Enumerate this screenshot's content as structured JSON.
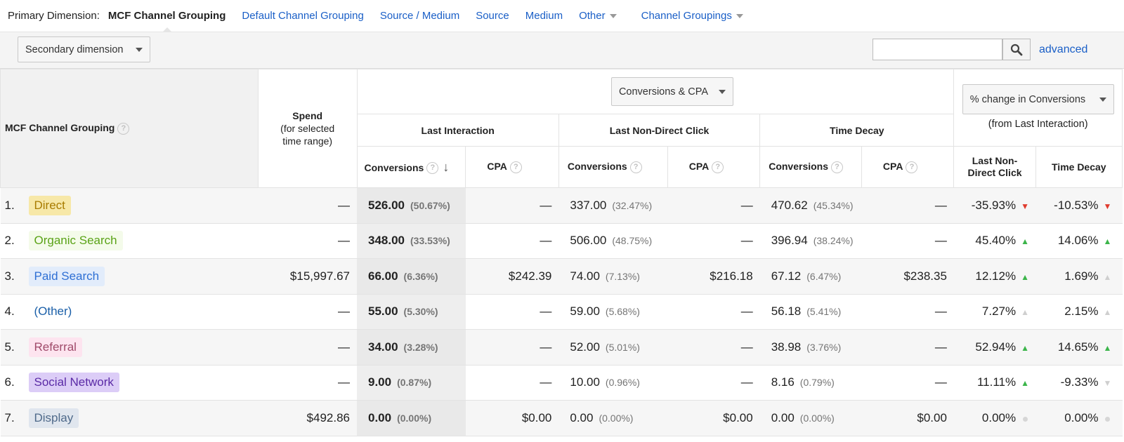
{
  "primary_dimension": {
    "label": "Primary Dimension:",
    "current": "MCF Channel Grouping",
    "links": [
      "Default Channel Grouping",
      "Source / Medium",
      "Source",
      "Medium"
    ],
    "other": "Other",
    "channel_groupings": "Channel Groupings"
  },
  "toolbar": {
    "secondary_dimension": "Secondary dimension",
    "search_value": "",
    "advanced": "advanced"
  },
  "table": {
    "dimension_header": "MCF Channel Grouping",
    "spend_header": "Spend",
    "spend_subheader": "(for selected time range)",
    "metric_selector": "Conversions & CPA",
    "change_selector": "% change in Conversions",
    "change_subheader": "(from Last Interaction)",
    "models": [
      "Last Interaction",
      "Last Non-Direct Click",
      "Time Decay"
    ],
    "conversions_label": "Conversions",
    "cpa_label": "CPA",
    "change_cols": [
      "Last Non-Direct Click",
      "Time Decay"
    ],
    "help_glyph": "?",
    "sort_glyph": "↓",
    "rows": [
      {
        "idx": "1.",
        "name": "Direct",
        "chip_bg": "#f7e8a8",
        "chip_fg": "#a87b00",
        "spend": "—",
        "li_conv": "526.00",
        "li_pct": "(50.67%)",
        "li_cpa": "—",
        "ln_conv": "337.00",
        "ln_pct": "(32.47%)",
        "ln_cpa": "—",
        "td_conv": "470.62",
        "td_pct": "(45.34%)",
        "td_cpa": "—",
        "ch_ln": "-35.93%",
        "ch_ln_dir": "down",
        "ch_td": "-10.53%",
        "ch_td_dir": "down"
      },
      {
        "idx": "2.",
        "name": "Organic Search",
        "chip_bg": "#f4fbea",
        "chip_fg": "#5aa317",
        "spend": "—",
        "li_conv": "348.00",
        "li_pct": "(33.53%)",
        "li_cpa": "—",
        "ln_conv": "506.00",
        "ln_pct": "(48.75%)",
        "ln_cpa": "—",
        "td_conv": "396.94",
        "td_pct": "(38.24%)",
        "td_cpa": "—",
        "ch_ln": "45.40%",
        "ch_ln_dir": "up",
        "ch_td": "14.06%",
        "ch_td_dir": "up"
      },
      {
        "idx": "3.",
        "name": "Paid Search",
        "chip_bg": "#e2ecfb",
        "chip_fg": "#2e6fd4",
        "spend": "$15,997.67",
        "li_conv": "66.00",
        "li_pct": "(6.36%)",
        "li_cpa": "$242.39",
        "ln_conv": "74.00",
        "ln_pct": "(7.13%)",
        "ln_cpa": "$216.18",
        "td_conv": "67.12",
        "td_pct": "(6.47%)",
        "td_cpa": "$238.35",
        "ch_ln": "12.12%",
        "ch_ln_dir": "up",
        "ch_td": "1.69%",
        "ch_td_dir": "up-gray"
      },
      {
        "idx": "4.",
        "name": "(Other)",
        "chip_bg": "transparent",
        "chip_fg": "#1a5fa8",
        "spend": "—",
        "li_conv": "55.00",
        "li_pct": "(5.30%)",
        "li_cpa": "—",
        "ln_conv": "59.00",
        "ln_pct": "(5.68%)",
        "ln_cpa": "—",
        "td_conv": "56.18",
        "td_pct": "(5.41%)",
        "td_cpa": "—",
        "ch_ln": "7.27%",
        "ch_ln_dir": "up-gray",
        "ch_td": "2.15%",
        "ch_td_dir": "up-gray"
      },
      {
        "idx": "5.",
        "name": "Referral",
        "chip_bg": "#fde4ef",
        "chip_fg": "#a04a6a",
        "spend": "—",
        "li_conv": "34.00",
        "li_pct": "(3.28%)",
        "li_cpa": "—",
        "ln_conv": "52.00",
        "ln_pct": "(5.01%)",
        "ln_cpa": "—",
        "td_conv": "38.98",
        "td_pct": "(3.76%)",
        "td_cpa": "—",
        "ch_ln": "52.94%",
        "ch_ln_dir": "up",
        "ch_td": "14.65%",
        "ch_td_dir": "up"
      },
      {
        "idx": "6.",
        "name": "Social Network",
        "chip_bg": "#dccdf7",
        "chip_fg": "#5a2aa6",
        "spend": "—",
        "li_conv": "9.00",
        "li_pct": "(0.87%)",
        "li_cpa": "—",
        "ln_conv": "10.00",
        "ln_pct": "(0.96%)",
        "ln_cpa": "—",
        "td_conv": "8.16",
        "td_pct": "(0.79%)",
        "td_cpa": "—",
        "ch_ln": "11.11%",
        "ch_ln_dir": "up",
        "ch_td": "-9.33%",
        "ch_td_dir": "down-gray"
      },
      {
        "idx": "7.",
        "name": "Display",
        "chip_bg": "#e0e6ee",
        "chip_fg": "#4f6a8a",
        "spend": "$492.86",
        "li_conv": "0.00",
        "li_pct": "(0.00%)",
        "li_cpa": "$0.00",
        "ln_conv": "0.00",
        "ln_pct": "(0.00%)",
        "ln_cpa": "$0.00",
        "td_conv": "0.00",
        "td_pct": "(0.00%)",
        "td_cpa": "$0.00",
        "ch_ln": "0.00%",
        "ch_ln_dir": "none",
        "ch_td": "0.00%",
        "ch_td_dir": "none"
      }
    ]
  },
  "colors": {
    "link": "#1a5fc7",
    "up": "#3bb54a",
    "down": "#e03b2e",
    "neutral": "#cfcfcf"
  }
}
